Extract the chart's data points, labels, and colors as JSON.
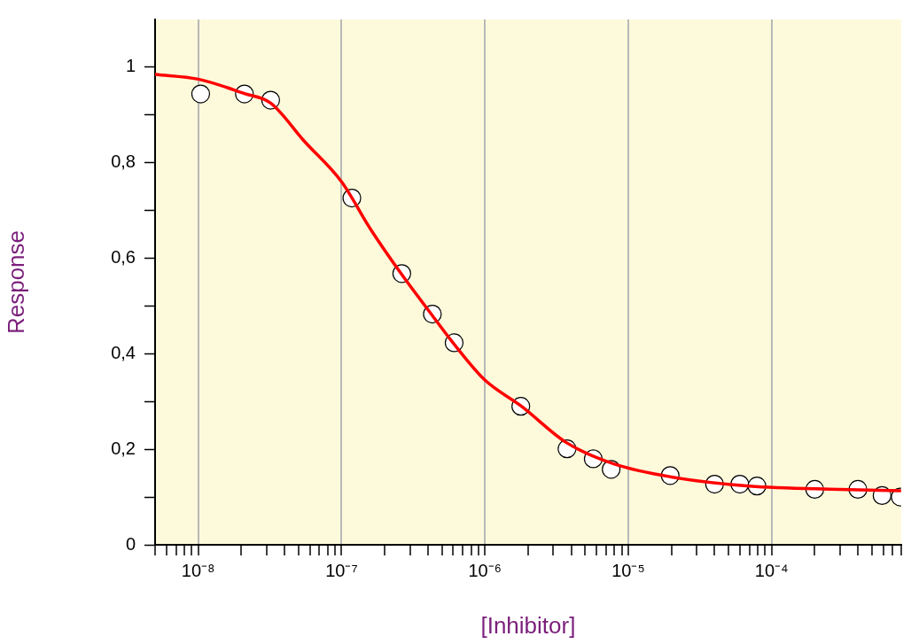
{
  "chart_data": {
    "type": "scatter",
    "xlabel": "[Inhibitor]",
    "ylabel": "Response",
    "log": "x",
    "grid": "x",
    "legend": false,
    "xlim": [
      5e-09,
      0.0008
    ],
    "ylim": [
      0,
      1.1
    ],
    "xticks": [
      {
        "value": 5e-09,
        "label": null
      },
      {
        "value": 6e-09,
        "label": null
      },
      {
        "value": 7e-09,
        "label": null
      },
      {
        "value": 8e-09,
        "label": null
      },
      {
        "value": 9e-09,
        "label": null
      },
      {
        "value": 1e-08,
        "label": "10⁻⁸"
      },
      {
        "value": 2e-08,
        "label": null
      },
      {
        "value": 3e-08,
        "label": null
      },
      {
        "value": 4e-08,
        "label": null
      },
      {
        "value": 5e-08,
        "label": null
      },
      {
        "value": 6e-08,
        "label": null
      },
      {
        "value": 7e-08,
        "label": null
      },
      {
        "value": 8e-08,
        "label": null
      },
      {
        "value": 9e-08,
        "label": null
      },
      {
        "value": 1e-07,
        "label": "10⁻⁷"
      },
      {
        "value": 2e-07,
        "label": null
      },
      {
        "value": 3e-07,
        "label": null
      },
      {
        "value": 4e-07,
        "label": null
      },
      {
        "value": 5e-07,
        "label": null
      },
      {
        "value": 6e-07,
        "label": null
      },
      {
        "value": 7e-07,
        "label": null
      },
      {
        "value": 8e-07,
        "label": null
      },
      {
        "value": 9e-07,
        "label": null
      },
      {
        "value": 1e-06,
        "label": "10⁻⁶"
      },
      {
        "value": 2e-06,
        "label": null
      },
      {
        "value": 3e-06,
        "label": null
      },
      {
        "value": 4e-06,
        "label": null
      },
      {
        "value": 5e-06,
        "label": null
      },
      {
        "value": 6e-06,
        "label": null
      },
      {
        "value": 7e-06,
        "label": null
      },
      {
        "value": 8e-06,
        "label": null
      },
      {
        "value": 9e-06,
        "label": null
      },
      {
        "value": 1e-05,
        "label": "10⁻⁵"
      },
      {
        "value": 2e-05,
        "label": null
      },
      {
        "value": 3e-05,
        "label": null
      },
      {
        "value": 4e-05,
        "label": null
      },
      {
        "value": 5e-05,
        "label": null
      },
      {
        "value": 6e-05,
        "label": null
      },
      {
        "value": 7e-05,
        "label": null
      },
      {
        "value": 8e-05,
        "label": null
      },
      {
        "value": 9e-05,
        "label": null
      },
      {
        "value": 0.0001,
        "label": "10⁻⁴"
      },
      {
        "value": 0.0002,
        "label": null
      },
      {
        "value": 0.0003,
        "label": null
      },
      {
        "value": 0.0004,
        "label": null
      },
      {
        "value": 0.0005,
        "label": null
      },
      {
        "value": 0.0006,
        "label": null
      },
      {
        "value": 0.0007,
        "label": null
      },
      {
        "value": 0.0008,
        "label": null
      }
    ],
    "yticks": [
      0,
      {
        "value": 0.1,
        "label": null
      },
      {
        "value": 0.2,
        "label": "0,2"
      },
      {
        "value": 0.3,
        "label": null
      },
      {
        "value": 0.4,
        "label": "0,4"
      },
      {
        "value": 0.5,
        "label": null
      },
      {
        "value": 0.6,
        "label": "0,6"
      },
      {
        "value": 0.7,
        "label": null
      },
      {
        "value": 0.8,
        "label": "0,8"
      },
      {
        "value": 0.9,
        "label": null
      },
      1
    ],
    "series": [
      {
        "type": "line",
        "color": "#ff0000",
        "marker": "none",
        "x": [
          5e-09,
          1e-08,
          2.1e-08,
          3.2e-08,
          5.5e-08,
          1e-07,
          1.6e-07,
          2.6e-07,
          4.3e-07,
          6.1e-07,
          1e-06,
          1.8e-06,
          3.7e-06,
          8e-06,
          2e-05,
          7e-05,
          0.0003,
          0.0008
        ],
        "values": [
          0.985,
          0.975,
          0.945,
          0.925,
          0.845,
          0.76,
          0.66,
          0.568,
          0.48,
          0.42,
          0.345,
          0.29,
          0.214,
          0.169,
          0.142,
          0.123,
          0.116,
          0.113
        ]
      },
      {
        "type": "scatter",
        "color": "#ffffff",
        "marker": "circle",
        "x": [
          1.04e-08,
          2.1e-08,
          3.2e-08,
          1.18e-07,
          2.63e-07,
          4.3e-07,
          6.1e-07,
          1.78e-06,
          3.74e-06,
          5.7e-06,
          7.6e-06,
          1.96e-05,
          4e-05,
          6e-05,
          7.9e-05,
          0.0002,
          0.0004,
          0.00059,
          0.00079
        ],
        "values": [
          0.944,
          0.944,
          0.931,
          0.726,
          0.568,
          0.483,
          0.423,
          0.29,
          0.201,
          0.18,
          0.158,
          0.145,
          0.127,
          0.127,
          0.123,
          0.116,
          0.116,
          0.103,
          0.1
        ]
      }
    ]
  }
}
